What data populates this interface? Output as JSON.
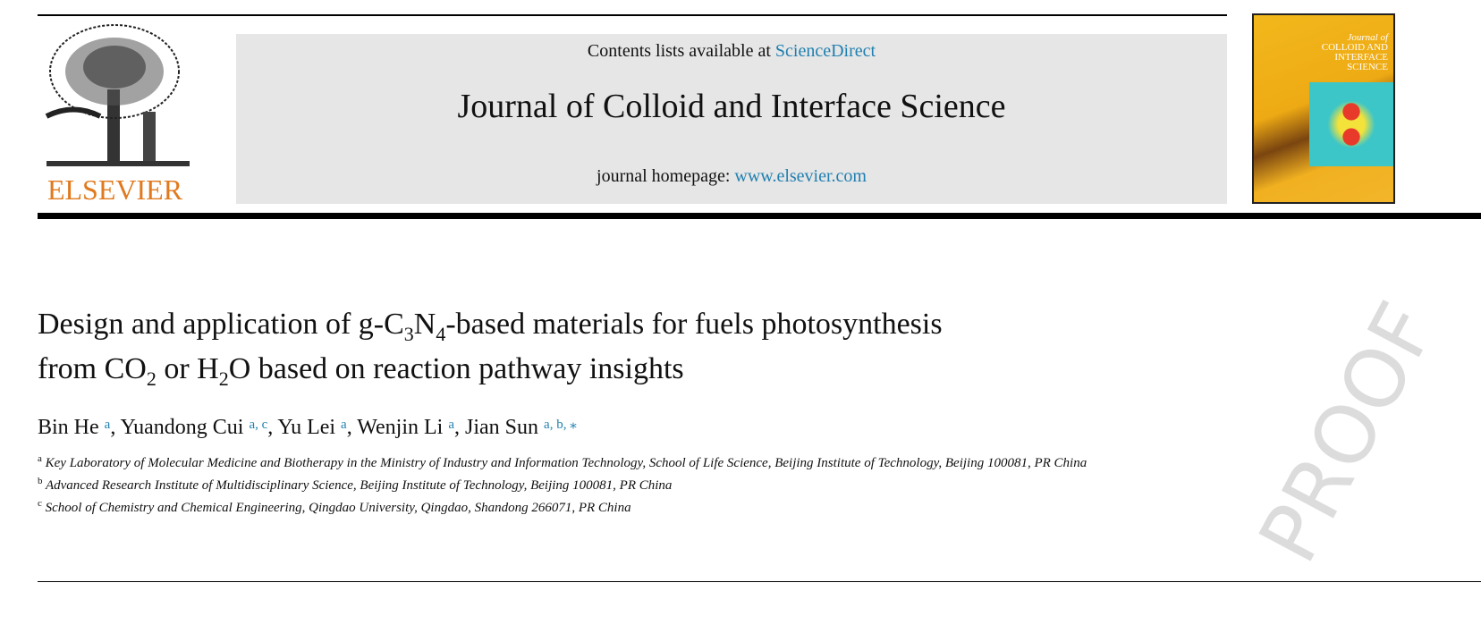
{
  "header": {
    "contents_prefix": "Contents lists available at ",
    "contents_link": "ScienceDirect",
    "journal_title": "Journal of Colloid and Interface Science",
    "homepage_prefix": "journal homepage: ",
    "homepage_link": "www.elsevier.com",
    "publisher_logo": "ELSEVIER",
    "cover_title": [
      "Journal of",
      "COLLOID AND",
      "INTERFACE",
      "SCIENCE"
    ]
  },
  "watermark": "PROOF",
  "article": {
    "title_line1": [
      "Design and application of g-C",
      "3",
      "N",
      "4",
      "-based materials for fuels photosynthesis"
    ],
    "title_line2": [
      "from CO",
      "2",
      " or H",
      "2",
      "O based on reaction pathway insights"
    ],
    "authors": [
      {
        "name": "Bin He",
        "aff": "a",
        "sep": ", "
      },
      {
        "name": "Yuandong Cui",
        "aff": "a, c",
        "sep": ", "
      },
      {
        "name": "Yu Lei",
        "aff": "a",
        "sep": ", "
      },
      {
        "name": "Wenjin Li",
        "aff": "a",
        "sep": ", "
      },
      {
        "name": "Jian Sun",
        "aff": "a, b, ⁎",
        "sep": ""
      }
    ],
    "affiliations": [
      {
        "label": "a",
        "text": "Key Laboratory of Molecular Medicine and Biotherapy in the Ministry of Industry and Information Technology, School of Life Science, Beijing Institute of Technology, Beijing 100081, PR China"
      },
      {
        "label": "b",
        "text": "Advanced Research Institute of Multidisciplinary Science, Beijing Institute of Technology, Beijing 100081, PR China"
      },
      {
        "label": "c",
        "text": "School of Chemistry and Chemical Engineering, Qingdao University, Qingdao, Shandong 266071, PR China"
      }
    ]
  },
  "colors": {
    "link": "#1f7fb0",
    "elsevier_orange": "#e07a1f",
    "header_gray": "#e6e6e6"
  }
}
